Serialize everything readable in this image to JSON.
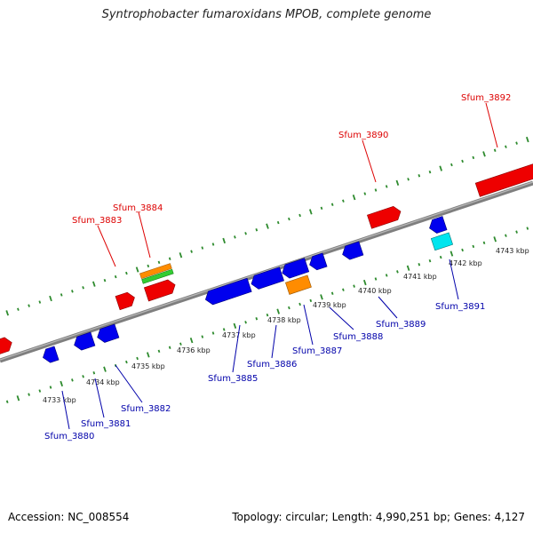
{
  "title": "Syntrophobacter fumaroxidans MPOB, complete genome",
  "footer": {
    "accession": "Accession: NC_008554",
    "info": "Topology: circular; Length: 4,990,251 bp; Genes: 4,127"
  },
  "colors": {
    "backbone": "#808080",
    "tick": "#2e8b2e",
    "forward_label": "#cc0000",
    "reverse_label": "#000099",
    "kbp_label": "#222222"
  },
  "kbp_labels": [
    "4733 kbp",
    "4734 kbp",
    "4735 kbp",
    "4736 kbp",
    "4737 kbp",
    "4738 kbp",
    "4739 kbp",
    "4740 kbp",
    "4741 kbp",
    "4742 kbp",
    "4743 kbp"
  ],
  "genes": {
    "forward": [
      "Sfum_3883",
      "Sfum_3884",
      "Sfum_3890",
      "Sfum_3892"
    ],
    "reverse": [
      "Sfum_3880",
      "Sfum_3881",
      "Sfum_3882",
      "Sfum_3885",
      "Sfum_3886",
      "Sfum_3887",
      "Sfum_3888",
      "Sfum_3889",
      "Sfum_3891"
    ]
  },
  "feature_colors": {
    "cds": "#ff0000",
    "cds_reverse": "#0000ee",
    "rna": "#ff8c00",
    "misc": "#33cc33",
    "cyan": "#00e5ee"
  }
}
